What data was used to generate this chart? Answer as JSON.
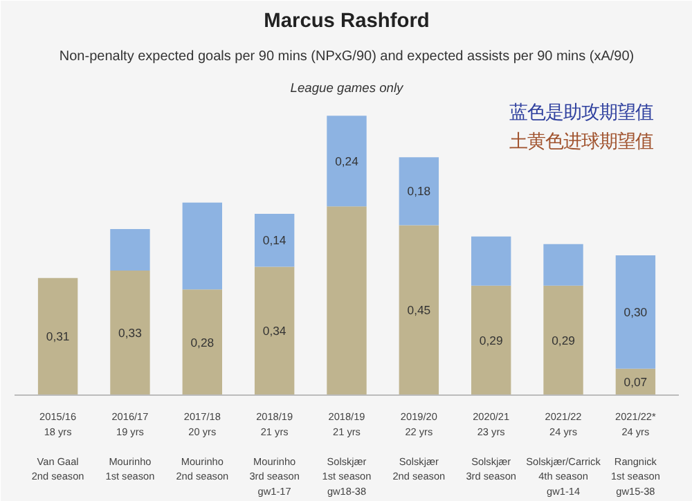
{
  "chart_data": {
    "type": "bar",
    "stacked": true,
    "title": "Marcus Rashford",
    "subtitle": "Non-penalty expected goals per 90 mins (NPxG/90) and expected assists per 90 mins (xA/90)",
    "annotations": [
      "League games only",
      "蓝色是助攻期望值",
      "土黄色进球期望值"
    ],
    "categories": [
      "2015/16\n18 yrs\n\nVan Gaal\n2nd season",
      "2016/17\n19 yrs\n\nMourinho\n1st season",
      "2017/18\n20 yrs\n\nMourinho\n2nd season",
      "2018/19\n21 yrs\n\nMourinho\n3rd season\ngw1-17",
      "2018/19\n21 yrs\n\nSolskjær\n1st season\ngw18-38",
      "2019/20\n22 yrs\n\nSolskjær\n2nd season",
      "2020/21\n23 yrs\n\nSolskjær\n3rd season",
      "2021/22\n24 yrs\n\nSolskjær/Carrick\n4th season\ngw1-14",
      "2021/22*\n24 yrs\n\nRangnick\n1st season\ngw15-38"
    ],
    "series": [
      {
        "color": "#bfb48f",
        "values": [
          0.31,
          0.33,
          0.28,
          0.34,
          0.5,
          0.45,
          0.29,
          0.29,
          0.07
        ],
        "value_labels": [
          "0,31",
          "0,33",
          "0,28",
          "0,34",
          null,
          "0,45",
          "0,29",
          "0,29",
          "0,07"
        ]
      },
      {
        "color": "#8db3e2",
        "values": [
          0,
          0.11,
          0.23,
          0.14,
          0.24,
          0.18,
          0.13,
          0.11,
          0.3
        ],
        "value_labels": [
          null,
          null,
          null,
          "0,14",
          "0,24",
          "0,18",
          null,
          null,
          "0,30"
        ]
      }
    ],
    "tick_labels": "x",
    "grid": false
  }
}
